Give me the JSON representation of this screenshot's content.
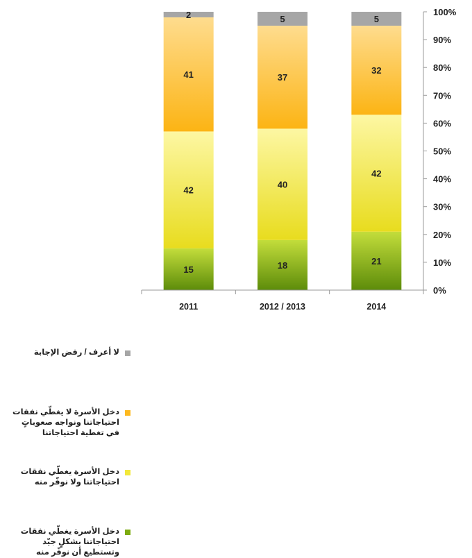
{
  "chart_data": {
    "type": "bar",
    "stacked": true,
    "percent": true,
    "categories": [
      "2011",
      "2012 / 2013",
      "2014"
    ],
    "series": [
      {
        "name": "دخل الأسرة يغطّي نفقات احتياجاتنا بشكلٍ جيّد وتستطيع أن نوفّر منه",
        "color": "#7dab10",
        "values": [
          15,
          18,
          21
        ]
      },
      {
        "name": "دخل الأسرة يغطّي نفقات احتياجاتنا ولا نوفّر منه",
        "color": "#f2e83a",
        "values": [
          42,
          40,
          42
        ]
      },
      {
        "name": "دخل الأسرة لا يغطّي نفقات احتياجاتنا ونواجه صعوباتٍ في تغطية احتياجاتنا",
        "color": "#fdb91f",
        "values": [
          41,
          37,
          32
        ]
      },
      {
        "name": "لا أعرف / رفض الإجابة",
        "color": "#a6a6a6",
        "values": [
          2,
          5,
          5
        ]
      }
    ],
    "yticks": [
      "0%",
      "10%",
      "20%",
      "30%",
      "40%",
      "50%",
      "60%",
      "70%",
      "80%",
      "90%",
      "100%"
    ],
    "ylim": [
      0,
      100
    ],
    "y_axis_position": "right",
    "legend_position": "left",
    "grid": false
  }
}
